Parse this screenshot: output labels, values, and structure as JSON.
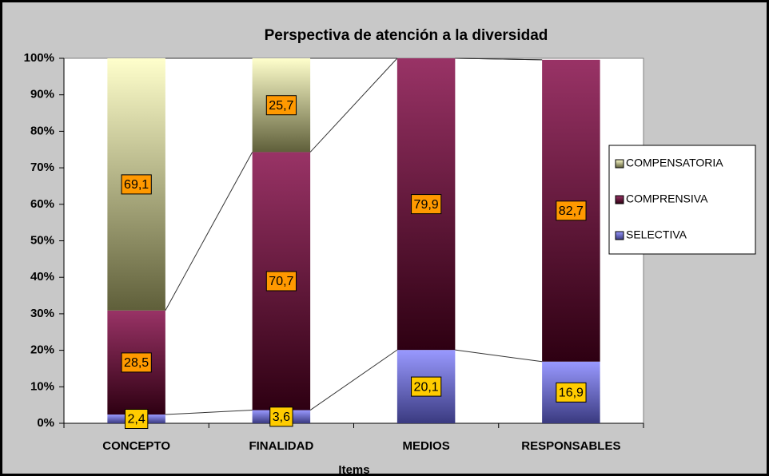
{
  "chart_data": {
    "type": "stacked_bar_percent",
    "title": "Perspectiva de atención a la diversidad",
    "x_label": "Items",
    "categories": [
      "CONCEPTO",
      "FINALIDAD",
      "MEDIOS",
      "RESPONSABLES"
    ],
    "series": [
      {
        "name": "SELECTIVA",
        "color": "#9999ff",
        "values": [
          2.4,
          3.6,
          20.1,
          16.9
        ],
        "value_labels": [
          "2,4",
          "3,6",
          "20,1",
          "16,9"
        ]
      },
      {
        "name": "COMPRENSIVA",
        "color": "#993366",
        "values": [
          28.5,
          70.7,
          79.9,
          82.7
        ],
        "value_labels": [
          "28,5",
          "70,7",
          "79,9",
          "82,7"
        ]
      },
      {
        "name": "COMPENSATORIA",
        "color": "#ffffcc",
        "values": [
          69.1,
          25.7,
          null,
          null
        ],
        "value_labels": [
          "69,1",
          "25,7",
          null,
          null
        ]
      }
    ],
    "ylim": [
      0,
      100
    ],
    "yticks": [
      {
        "value": 0,
        "label": "0%"
      },
      {
        "value": 10,
        "label": "10%"
      },
      {
        "value": 20,
        "label": "20%"
      },
      {
        "value": 30,
        "label": "30%"
      },
      {
        "value": 40,
        "label": "40%"
      },
      {
        "value": 50,
        "label": "50%"
      },
      {
        "value": 60,
        "label": "60%"
      },
      {
        "value": 70,
        "label": "70%"
      },
      {
        "value": 80,
        "label": "80%"
      },
      {
        "value": 90,
        "label": "90%"
      },
      {
        "value": 100,
        "label": "100%"
      }
    ],
    "legend": "right"
  }
}
